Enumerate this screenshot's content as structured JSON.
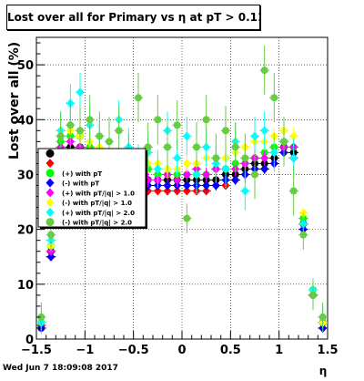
{
  "title": "Lost over all for Primary vs  η at pT > 0.11",
  "footer_timestamp": "Wed Jun  7 18:09:08 2017",
  "colors": {
    "black": "#000000",
    "red": "#ff0000",
    "green": "#00ff00",
    "blue": "#0000ff",
    "yellow": "#ffff00",
    "magenta": "#ff00ff",
    "cyan": "#00ffff",
    "olive_green": "#66cc44"
  },
  "chart_data": {
    "type": "scatter",
    "title": "Lost over all for Primary vs  η at pT > 0.11",
    "xlabel": "η",
    "ylabel": "Lost over all (%)",
    "xlim": [
      -1.5,
      1.5
    ],
    "ylim": [
      0,
      55
    ],
    "xticks": [
      -1.5,
      -1,
      -0.5,
      0,
      0.5,
      1,
      1.5
    ],
    "xtick_labels": [
      "−1.5",
      "−1",
      "−0.5",
      "0",
      "0.5",
      "1",
      "1.5"
    ],
    "yticks": [
      0,
      10,
      20,
      30,
      40,
      50
    ],
    "ytick_labels": [
      "0",
      "10",
      "20",
      "30",
      "40",
      "50"
    ],
    "grid": true,
    "legend_position": "left, middle",
    "series": [
      {
        "name": "",
        "color": "#000000",
        "marker": "circle",
        "err": 0.5,
        "x": [
          -1.45,
          -1.35,
          -1.25,
          -1.15,
          -1.05,
          -0.95,
          -0.85,
          -0.75,
          -0.65,
          -0.55,
          -0.45,
          -0.35,
          -0.25,
          -0.15,
          -0.05,
          0.05,
          0.15,
          0.25,
          0.35,
          0.45,
          0.55,
          0.65,
          0.75,
          0.85,
          0.95,
          1.05,
          1.15,
          1.25,
          1.35,
          1.45
        ],
        "y": [
          2,
          16,
          34,
          35,
          35,
          34,
          33,
          32,
          32,
          31,
          30,
          29,
          29,
          29,
          29,
          29,
          29,
          29,
          29,
          30,
          30,
          31,
          32,
          32,
          33,
          35,
          34,
          21,
          8,
          3
        ]
      },
      {
        "name": "",
        "color": "#ff0000",
        "marker": "diamond",
        "err": 0.6,
        "x": [
          -1.45,
          -1.35,
          -1.25,
          -1.15,
          -1.05,
          -0.95,
          -0.85,
          -0.75,
          -0.65,
          -0.55,
          -0.45,
          -0.35,
          -0.25,
          -0.15,
          -0.05,
          0.05,
          0.15,
          0.25,
          0.35,
          0.45,
          0.55,
          0.65,
          0.75,
          0.85,
          0.95,
          1.05,
          1.15,
          1.25,
          1.35,
          1.45
        ],
        "y": [
          2.5,
          15,
          34,
          34,
          33,
          32,
          31,
          30,
          29,
          28,
          28,
          27,
          27,
          27,
          27,
          27,
          27,
          27,
          28,
          28,
          29,
          30,
          31,
          31,
          32,
          34,
          33,
          21,
          8,
          2
        ]
      },
      {
        "name": "(+) with pT",
        "color": "#00ff00",
        "marker": "circle",
        "err": 1.0,
        "x": [
          -1.45,
          -1.35,
          -1.25,
          -1.15,
          -1.05,
          -0.95,
          -0.85,
          -0.75,
          -0.65,
          -0.55,
          -0.45,
          -0.35,
          -0.25,
          -0.15,
          -0.05,
          0.05,
          0.15,
          0.25,
          0.35,
          0.45,
          0.55,
          0.65,
          0.75,
          0.85,
          0.95,
          1.05,
          1.15,
          1.25,
          1.35,
          1.45
        ],
        "y": [
          3,
          17,
          36,
          37,
          37,
          35,
          34,
          33,
          33,
          32,
          31,
          31,
          30,
          30,
          30,
          30,
          30,
          30,
          31,
          31,
          32,
          32,
          33,
          34,
          35,
          36,
          35,
          22,
          9,
          3
        ]
      },
      {
        "name": "(-) with pT",
        "color": "#0000ff",
        "marker": "diamond",
        "err": 0.9,
        "x": [
          -1.45,
          -1.35,
          -1.25,
          -1.15,
          -1.05,
          -0.95,
          -0.85,
          -0.75,
          -0.65,
          -0.55,
          -0.45,
          -0.35,
          -0.25,
          -0.15,
          -0.05,
          0.05,
          0.15,
          0.25,
          0.35,
          0.45,
          0.55,
          0.65,
          0.75,
          0.85,
          0.95,
          1.05,
          1.15,
          1.25,
          1.35,
          1.45
        ],
        "y": [
          2,
          15,
          33,
          34,
          33,
          32,
          31,
          30,
          29,
          29,
          28,
          28,
          28,
          28,
          28,
          28,
          28,
          28,
          28,
          29,
          29,
          30,
          31,
          31,
          32,
          34,
          33,
          20,
          8,
          2
        ]
      },
      {
        "name": "(+) with pT/|q| > 1.0",
        "color": "#ff00ff",
        "marker": "diamond",
        "err": 1.3,
        "x": [
          -1.45,
          -1.35,
          -1.25,
          -1.15,
          -1.05,
          -0.95,
          -0.85,
          -0.75,
          -0.65,
          -0.55,
          -0.45,
          -0.35,
          -0.25,
          -0.15,
          -0.05,
          0.05,
          0.15,
          0.25,
          0.35,
          0.45,
          0.55,
          0.65,
          0.75,
          0.85,
          0.95,
          1.05,
          1.15,
          1.25,
          1.35,
          1.45
        ],
        "y": [
          3,
          16,
          35,
          36,
          35,
          34,
          33,
          32,
          31,
          30,
          30,
          29,
          29,
          30,
          29,
          30,
          31,
          30,
          31,
          31,
          31,
          32,
          33,
          33,
          34,
          35,
          35,
          21,
          8,
          3
        ]
      },
      {
        "name": "(-) with pT/|q| > 1.0",
        "color": "#ffff00",
        "marker": "diamond",
        "err": 1.6,
        "x": [
          -1.45,
          -1.35,
          -1.25,
          -1.15,
          -1.05,
          -0.95,
          -0.85,
          -0.75,
          -0.65,
          -0.55,
          -0.45,
          -0.35,
          -0.25,
          -0.15,
          -0.05,
          0.05,
          0.15,
          0.25,
          0.35,
          0.45,
          0.55,
          0.65,
          0.75,
          0.85,
          0.95,
          1.05,
          1.15,
          1.25,
          1.35,
          1.45
        ],
        "y": [
          3,
          17,
          37,
          38,
          37,
          36,
          35,
          34,
          33,
          33,
          32,
          32,
          32,
          31,
          31,
          32,
          32,
          33,
          33,
          33,
          34,
          35,
          36,
          36,
          37,
          38,
          37,
          23,
          9,
          3
        ]
      },
      {
        "name": "(+) with pT/|q| > 2.0",
        "color": "#00ffff",
        "marker": "diamond",
        "err": 3.5,
        "x": [
          -1.45,
          -1.35,
          -1.25,
          -1.15,
          -1.05,
          -0.95,
          -0.85,
          -0.75,
          -0.65,
          -0.55,
          -0.45,
          -0.35,
          -0.25,
          -0.15,
          -0.05,
          0.05,
          0.15,
          0.25,
          0.35,
          0.45,
          0.55,
          0.65,
          0.75,
          0.85,
          0.95,
          1.05,
          1.15,
          1.25,
          1.35,
          1.45
        ],
        "y": [
          3,
          18,
          38,
          43,
          45,
          39,
          37,
          33,
          40,
          35,
          32,
          34,
          31,
          38,
          33,
          37,
          30,
          35,
          32,
          31,
          36,
          27,
          37,
          38,
          34,
          36,
          33,
          21,
          9,
          4
        ]
      },
      {
        "name": "(-) with pT/|q| > 2.0",
        "color": "#66cc44",
        "marker": "circle",
        "err": 4.5,
        "x": [
          -1.45,
          -1.35,
          -1.25,
          -1.15,
          -1.05,
          -0.95,
          -0.85,
          -0.75,
          -0.65,
          -0.55,
          -0.45,
          -0.35,
          -0.25,
          -0.15,
          -0.05,
          0.05,
          0.15,
          0.25,
          0.35,
          0.45,
          0.55,
          0.65,
          0.75,
          0.85,
          0.95,
          1.05,
          1.15,
          1.25,
          1.35,
          1.45
        ],
        "y": [
          4,
          19,
          37,
          39,
          38,
          40,
          37,
          36,
          38,
          33,
          44,
          35,
          40,
          35,
          39,
          22,
          35,
          40,
          33,
          38,
          35,
          33,
          30,
          49,
          44,
          36,
          27,
          19,
          8,
          4
        ]
      }
    ]
  }
}
